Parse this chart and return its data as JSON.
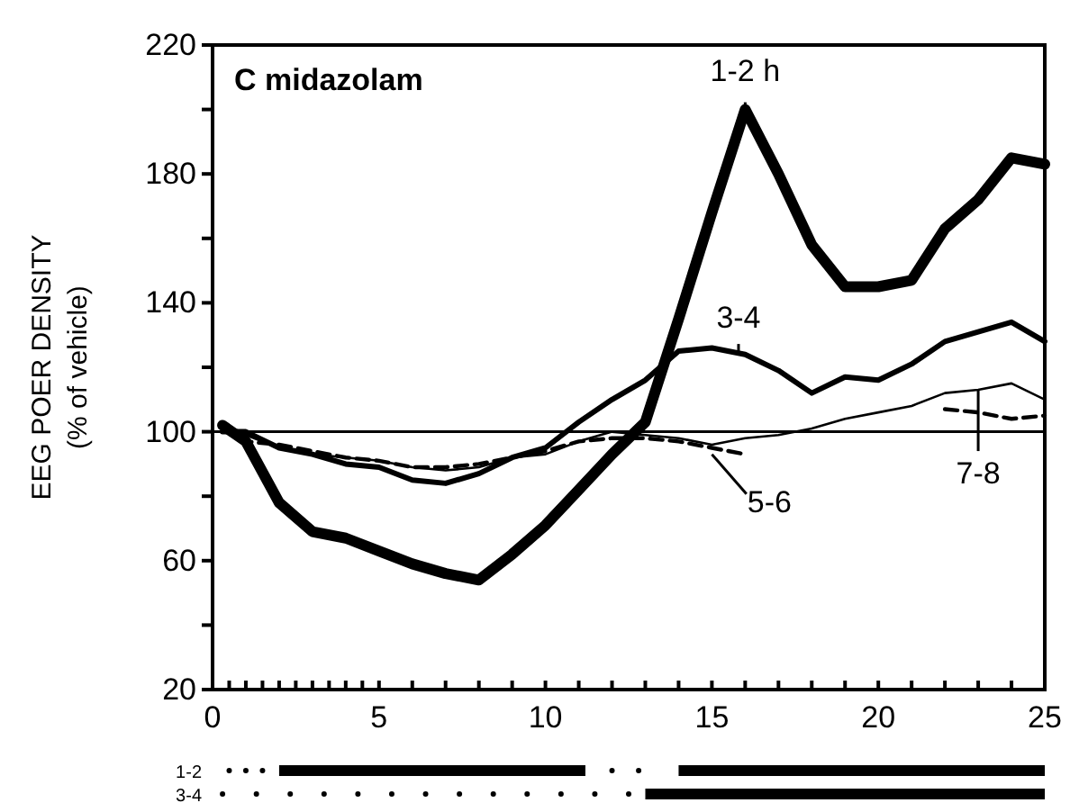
{
  "chart_data": {
    "type": "line",
    "title": "C midazolam",
    "ylabel": "EEG POER DENSITY\n(% of vehicle)",
    "x": [
      0.3,
      1,
      2,
      3,
      4,
      5,
      6,
      7,
      8,
      9,
      10,
      11,
      12,
      13,
      14,
      15,
      16,
      17,
      18,
      19,
      20,
      21,
      22,
      23,
      24,
      25
    ],
    "series": [
      {
        "color": "#000000",
        "line_style": "solid",
        "values": [
          102,
          97,
          78,
          69,
          67,
          63,
          59,
          56,
          54,
          62,
          71,
          82,
          93,
          103,
          135,
          168,
          200,
          180,
          158,
          145,
          145,
          147,
          163,
          172,
          185,
          183
        ]
      },
      {
        "color": "#000000",
        "line_style": "solid",
        "values": [
          100,
          100,
          95,
          93,
          90,
          89,
          85,
          84,
          87,
          92,
          95,
          103,
          110,
          116,
          125,
          126,
          124,
          119,
          112,
          117,
          116,
          121,
          128,
          131,
          134,
          128
        ]
      },
      {
        "color": "#000000",
        "line_style": "dashed",
        "values": [
          101,
          97,
          96,
          94,
          92,
          91,
          89,
          89,
          90,
          92,
          94,
          97,
          98,
          98,
          97,
          95,
          93,
          null,
          null,
          null,
          null,
          null,
          107,
          106,
          104,
          105
        ]
      },
      {
        "color": "#000000",
        "line_style": "solid",
        "values": [
          101,
          99,
          95,
          93,
          92,
          91,
          89,
          88,
          89,
          92,
          93,
          97,
          100,
          99,
          98,
          96,
          98,
          99,
          101,
          104,
          106,
          108,
          112,
          113,
          115,
          110
        ]
      }
    ],
    "xlim": [
      0,
      25
    ],
    "ylim": [
      20,
      220
    ],
    "xticks": [
      0,
      {
        "value": 0.5,
        "label": null
      },
      {
        "value": 1,
        "label": null
      },
      {
        "value": 1.5,
        "label": null
      },
      {
        "value": 2,
        "label": null
      },
      {
        "value": 2.5,
        "label": null
      },
      {
        "value": 3,
        "label": null
      },
      {
        "value": 3.5,
        "label": null
      },
      {
        "value": 4,
        "label": null
      },
      {
        "value": 4.5,
        "label": null
      },
      5,
      {
        "value": 6,
        "label": null
      },
      {
        "value": 7,
        "label": null
      },
      {
        "value": 8,
        "label": null
      },
      {
        "value": 9,
        "label": null
      },
      10,
      {
        "value": 11,
        "label": null
      },
      {
        "value": 12,
        "label": null
      },
      {
        "value": 13,
        "label": null
      },
      {
        "value": 14,
        "label": null
      },
      15,
      {
        "value": 16,
        "label": null
      },
      {
        "value": 17,
        "label": null
      },
      {
        "value": 18,
        "label": null
      },
      {
        "value": 19,
        "label": null
      },
      20,
      {
        "value": 21,
        "label": null
      },
      {
        "value": 22,
        "label": null
      },
      {
        "value": 23,
        "label": null
      },
      {
        "value": 24,
        "label": null
      },
      25
    ],
    "yticks": [
      20,
      {
        "value": 40,
        "label": null
      },
      60,
      {
        "value": 80,
        "label": null
      },
      100,
      {
        "value": 120,
        "label": null
      },
      140,
      {
        "value": 160,
        "label": null
      },
      180,
      {
        "value": 200,
        "label": null
      },
      220
    ],
    "ref_lines": [
      {
        "axis": "y",
        "value": 100,
        "color": "#000000"
      }
    ],
    "annotations": [
      {
        "text": "1-2 h",
        "x": 16,
        "y": 200
      },
      {
        "text": "3-4",
        "x": 15.8,
        "y": 125
      },
      {
        "text": "5-6",
        "x": 15,
        "y": 93
      },
      {
        "text": "7-8",
        "x": 23,
        "y": 113
      },
      "1-2",
      "3-4"
    ],
    "grid": false,
    "marker": "none"
  }
}
